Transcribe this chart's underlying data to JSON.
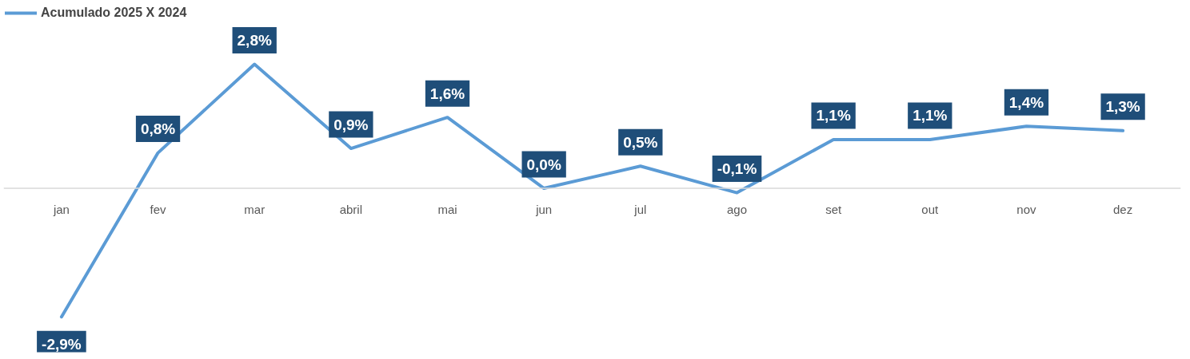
{
  "chart_data": {
    "type": "line",
    "categories": [
      "jan",
      "fev",
      "mar",
      "abril",
      "mai",
      "jun",
      "jul",
      "ago",
      "set",
      "out",
      "nov",
      "dez"
    ],
    "series": [
      {
        "name": "Acumulado 2025 X 2024",
        "color": "#5b9bd5",
        "values": [
          -2.9,
          0.8,
          2.8,
          0.9,
          1.6,
          0.0,
          0.5,
          -0.1,
          1.1,
          1.1,
          1.4,
          1.3
        ],
        "value_labels": [
          "-2,9%",
          "0,8%",
          "2,8%",
          "0,9%",
          "1,6%",
          "0,0%",
          "0,5%",
          "-0,1%",
          "1,1%",
          "1,1%",
          "1,4%",
          "1,3%"
        ]
      }
    ],
    "legend": "top left",
    "grid": false,
    "marker": "none",
    "line_style": "solid"
  }
}
